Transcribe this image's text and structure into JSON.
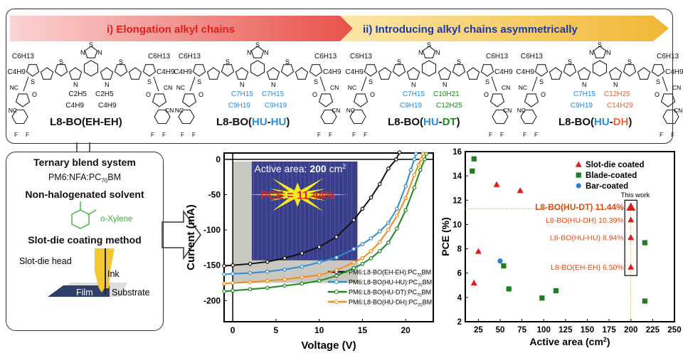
{
  "banner": {
    "step1": "i) Elongation alkyl chains",
    "step2": "ii) Introducing alkyl chains asymmetrically"
  },
  "molecules": [
    {
      "prefix": "L8-BO(",
      "a": "EH",
      "sep": "-",
      "b": "EH",
      "suffix": ")",
      "color_a": "#111111",
      "color_b": "#111111",
      "outer_chains": [
        "C6H13",
        "C4H9"
      ],
      "inner_left": [
        "C2H5",
        "C4H9"
      ],
      "inner_right": [
        "C2H5",
        "C4H9"
      ],
      "inner_left_color": "#111111",
      "inner_right_color": "#111111"
    },
    {
      "prefix": "L8-BO(",
      "a": "HU",
      "sep": "-",
      "b": "HU",
      "suffix": ")",
      "color_a": "#2e8bd6",
      "color_b": "#2e8bd6",
      "outer_chains": [
        "C6H13",
        "C4H9"
      ],
      "inner_left": [
        "C7H15",
        "C9H19"
      ],
      "inner_right": [
        "C7H15",
        "C9H19"
      ],
      "inner_left_color": "#2e8bd6",
      "inner_right_color": "#2e8bd6"
    },
    {
      "prefix": "L8-BO(",
      "a": "HU",
      "sep": "-",
      "b": "DT",
      "suffix": ")",
      "color_a": "#2e8bd6",
      "color_b": "#1e8a1e",
      "outer_chains": [
        "C6H13",
        "C4H9"
      ],
      "inner_left": [
        "C7H15",
        "C9H19"
      ],
      "inner_right": [
        "C10H21",
        "C12H25"
      ],
      "inner_left_color": "#2e8bd6",
      "inner_right_color": "#1e8a1e"
    },
    {
      "prefix": "L8-BO(",
      "a": "HU",
      "sep": "-",
      "b": "DH",
      "suffix": ")",
      "color_a": "#2e8bd6",
      "color_b": "#e8643c",
      "outer_chains": [
        "C6H13",
        "C4H9"
      ],
      "inner_left": [
        "C7H15",
        "C9H19"
      ],
      "inner_right": [
        "C12H25",
        "C14H29"
      ],
      "inner_left_color": "#2e8bd6",
      "inner_right_color": "#e8643c"
    }
  ],
  "atoms": {
    "S": "S",
    "N": "N",
    "O": "O",
    "F": "F",
    "CN": "CN",
    "NC": "NC"
  },
  "left_panel": {
    "title1": "Ternary blend system",
    "blend_main": "PM6:NFA:PC",
    "blend_sub": "70",
    "blend_end": "BM",
    "title2": "Non-halogenated solvent",
    "solvent": "o-Xylene",
    "title3": "Slot-die coating method",
    "head_label": "Slot-die head",
    "ink_label": "Ink",
    "film_label": "Film",
    "substrate_label": "Substrate"
  },
  "chart_data": [
    {
      "type": "line",
      "xlabel": "Voltage (V)",
      "ylabel": "Current (mA)",
      "xlim": [
        -1,
        23.2
      ],
      "ylim": [
        -230,
        9
      ],
      "xticks": [
        0,
        5,
        10,
        15,
        20
      ],
      "yticks": [
        0,
        -50,
        -100,
        -150,
        -200
      ],
      "inset_text": {
        "prefix": "Active area: ",
        "value": "200",
        "unit": " cm",
        "sup": "2"
      },
      "burst_text": "PCE = 11.44%",
      "series": [
        {
          "name": "PM6:L8-BO(EH-EH):PC70BM",
          "label_main": "PM6:L8-BO(EH-EH):PC",
          "label_sub": "70",
          "label_end": "BM",
          "color": "#111111",
          "x": [
            -1,
            0,
            2,
            4,
            6,
            8,
            10,
            12,
            14,
            15,
            16,
            17,
            18,
            18.9,
            19.3
          ],
          "y": [
            -151,
            -150,
            -148,
            -145,
            -140,
            -133,
            -124,
            -110,
            -86,
            -70,
            -54,
            -35,
            -13,
            0,
            10
          ]
        },
        {
          "name": "PM6:L8-BO(HU-HU):PC70BM",
          "label_main": "PM6:L8-BO(HU-HU):PC",
          "label_sub": "70",
          "label_end": "BM",
          "color": "#2e8bd6",
          "x": [
            -1,
            0,
            2,
            4,
            6,
            8,
            10,
            12,
            14,
            15,
            16,
            17,
            18,
            19,
            20,
            20.6,
            21,
            21.2
          ],
          "y": [
            -163,
            -162,
            -161,
            -159,
            -156,
            -152,
            -146,
            -139,
            -127,
            -120,
            -112,
            -102,
            -90,
            -70,
            -38,
            -15,
            0,
            8
          ]
        },
        {
          "name": "PM6:L8-BO(HU-DT):PC70BM",
          "label_main": "PM6:L8-BO(HU-DT):PC",
          "label_sub": "70",
          "label_end": "BM",
          "color": "#1e8a1e",
          "x": [
            -1,
            0,
            2,
            4,
            6,
            8,
            10,
            12,
            14,
            15,
            16,
            17,
            18,
            19,
            20,
            21,
            21.7,
            22.2,
            22.4
          ],
          "y": [
            -187,
            -186,
            -184,
            -182,
            -179,
            -176,
            -172,
            -165,
            -154,
            -148,
            -140,
            -130,
            -118,
            -98,
            -72,
            -40,
            -15,
            0,
            8
          ]
        },
        {
          "name": "PM6:L8-BO(HU-DH):PC70BM",
          "label_main": "PM6:L8-BO(HU-DH):PC",
          "label_sub": "70",
          "label_end": "BM",
          "color": "#f08a1c",
          "x": [
            -1,
            0,
            2,
            4,
            6,
            8,
            10,
            12,
            14,
            15,
            16,
            17,
            18,
            19,
            20,
            21,
            21.5,
            21.8,
            22
          ],
          "y": [
            -176,
            -175,
            -174,
            -172,
            -170,
            -167,
            -164,
            -157,
            -146,
            -140,
            -130,
            -117,
            -100,
            -80,
            -55,
            -22,
            -8,
            0,
            8
          ]
        }
      ]
    },
    {
      "type": "scatter",
      "xlabel": "Active area (cm2)",
      "xlabel_main": "Active area (cm",
      "xlabel_sup": "2",
      "xlabel_end": ")",
      "ylabel": "PCE (%)",
      "xlim": [
        10,
        250
      ],
      "ylim": [
        2,
        16
      ],
      "xticks": [
        25,
        50,
        75,
        100,
        125,
        150,
        175,
        200,
        225,
        250
      ],
      "yticks": [
        2,
        4,
        6,
        8,
        10,
        12,
        14,
        16
      ],
      "legend_position": "top-right",
      "this_work_label": "This work",
      "series": [
        {
          "name": "Slot-die coated",
          "marker": "triangle",
          "color": "#e31a1c",
          "x": [
            20,
            25,
            46,
            73
          ],
          "y": [
            5.2,
            7.8,
            13.3,
            12.8
          ]
        },
        {
          "name": "Blade-coated",
          "marker": "square",
          "color": "#1e7d1e",
          "x": [
            18,
            20,
            54,
            60,
            98,
            114,
            216,
            216
          ],
          "y": [
            14.4,
            15.4,
            6.6,
            4.7,
            3.95,
            4.55,
            8.5,
            3.7
          ]
        },
        {
          "name": "Bar-coated",
          "marker": "circle",
          "color": "#2e7fd6",
          "x": [
            50
          ],
          "y": [
            7.0
          ]
        }
      ],
      "this_work": [
        {
          "label": "L8-BO(HU-DT)  11.44%",
          "x": 200,
          "y": 11.44,
          "highlight": true
        },
        {
          "label": "L8-BO(HU-DH) 10.39%",
          "x": 200,
          "y": 10.39
        },
        {
          "label": "L8-BO(HU-HU) 8.94%",
          "x": 200,
          "y": 8.94
        },
        {
          "label": "L8-BO(EH-EH) 6.50%",
          "x": 200,
          "y": 6.5
        }
      ]
    }
  ]
}
